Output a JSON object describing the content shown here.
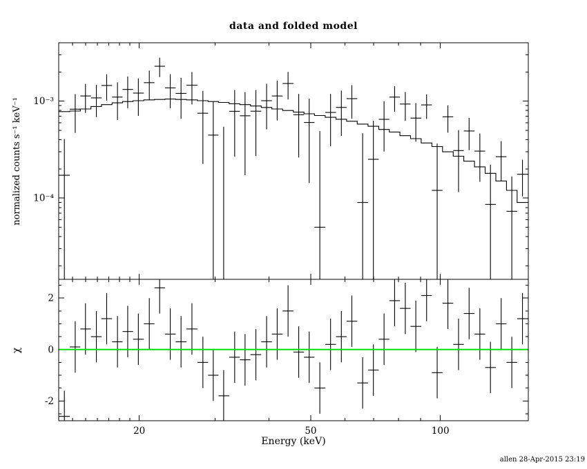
{
  "chart_data": {
    "type": "scatter",
    "title": "data and folded model",
    "xlabel": "Energy (keV)",
    "ylabel_top": "normalized counts s⁻¹ keV⁻¹",
    "ylabel_bottom": "χ",
    "annotation": "allen 28-Apr-2015 23:19",
    "xlim": [
      13,
      160
    ],
    "ylim_top": [
      1.45e-05,
      0.004
    ],
    "ylim_bottom": [
      -2.77,
      2.73
    ],
    "x_scale": "log",
    "y_scale_top": "log",
    "grid": false,
    "x_ticks": [
      {
        "value": 20,
        "label": "20"
      },
      {
        "value": 50,
        "label": "50"
      },
      {
        "value": 100,
        "label": "100"
      }
    ],
    "x_minor_ticks": [
      14,
      15,
      16,
      17,
      18,
      19,
      30,
      40,
      60,
      70,
      80,
      90
    ],
    "y_ticks_top": [
      {
        "value": 0.001,
        "label": "10⁻³"
      },
      {
        "value": 0.0001,
        "label": "10⁻⁴"
      }
    ],
    "y_ticks_bottom": [
      {
        "value": 2,
        "label": "2"
      },
      {
        "value": 0,
        "label": "0"
      },
      {
        "value": -2,
        "label": "-2"
      }
    ],
    "colors": {
      "data": "#000000",
      "model": "#000000",
      "zero_line": "#00dd00"
    },
    "chi_error": 1.0,
    "energy": [
      13.4,
      14.2,
      15.0,
      15.9,
      16.8,
      17.8,
      18.8,
      19.9,
      21.1,
      22.3,
      23.6,
      25.0,
      26.5,
      28.1,
      29.7,
      31.4,
      33.3,
      35.2,
      37.3,
      39.5,
      41.8,
      44.3,
      46.9,
      49.6,
      52.5,
      55.6,
      58.9,
      62.3,
      66.0,
      69.9,
      74.0,
      78.3,
      82.9,
      87.7,
      92.9,
      98.3,
      104.1,
      110.2,
      116.6,
      123.5,
      130.7,
      138.4,
      146.5,
      155.1
    ],
    "model": [
      0.00078,
      0.00079,
      0.00083,
      0.00088,
      0.00092,
      0.00096,
      0.00099,
      0.00101,
      0.00103,
      0.00104,
      0.00105,
      0.00104,
      0.00103,
      0.00101,
      0.00099,
      0.00097,
      0.00094,
      0.00092,
      0.00089,
      0.00086,
      0.00083,
      0.0008,
      0.00077,
      0.00074,
      0.00071,
      0.00068,
      0.00065,
      0.00062,
      0.00058,
      0.00055,
      0.00051,
      0.00048,
      0.00044,
      0.00041,
      0.00037,
      0.00034,
      0.0003,
      0.00027,
      0.00024,
      0.00021,
      0.00018,
      0.00015,
      0.00012,
      9e-05
    ],
    "data": [
      0.000172,
      0.000826,
      0.00113,
      0.00108,
      0.00145,
      0.0011,
      0.00132,
      0.00121,
      0.00155,
      0.00229,
      0.00137,
      0.0012,
      0.00146,
      0.00075,
      0.000446,
      9.9e-06,
      0.000785,
      0.000706,
      0.000787,
      0.00101,
      0.00113,
      0.00152,
      0.000724,
      0.000602,
      5e-05,
      0.000764,
      0.000861,
      0.00106,
      9e-05,
      0.000251,
      0.000649,
      0.0011,
      0.000933,
      0.000668,
      0.000914,
      0.00012,
      0.000689,
      0.000309,
      0.000492,
      0.000305,
      8.6e-05,
      0.000267,
      7.3e-05,
      0.000176
    ],
    "error": [
      0.000234,
      0.000356,
      0.000374,
      0.000396,
      0.000442,
      0.000461,
      0.000475,
      0.000505,
      0.000515,
      0.00052,
      0.000525,
      0.000541,
      0.000536,
      0.000525,
      0.000545,
      0.000534,
      0.000517,
      0.000534,
      0.000516,
      0.000499,
      0.000498,
      0.00048,
      0.000462,
      0.000459,
      0.00044,
      0.000422,
      0.000423,
      0.000403,
      0.000377,
      0.000374,
      0.000347,
      0.000326,
      0.000308,
      0.000287,
      0.000259,
      0.000245,
      0.000216,
      0.000194,
      0.00018,
      0.000158,
      0.000135,
      0.000117,
      9.4e-05,
      7.2e-05
    ],
    "chi": [
      -2.6,
      0.1,
      0.8,
      0.5,
      1.2,
      0.3,
      0.7,
      0.4,
      1.0,
      2.4,
      0.6,
      0.3,
      0.8,
      -0.5,
      -1.0,
      -1.8,
      -0.3,
      -0.4,
      -0.2,
      0.3,
      0.6,
      1.5,
      -0.1,
      -0.3,
      -1.5,
      0.2,
      0.5,
      1.1,
      -1.3,
      -0.8,
      0.4,
      1.9,
      1.6,
      0.9,
      2.1,
      -0.9,
      1.8,
      0.2,
      1.4,
      0.6,
      -0.7,
      1.0,
      -0.5,
      1.2
    ]
  }
}
